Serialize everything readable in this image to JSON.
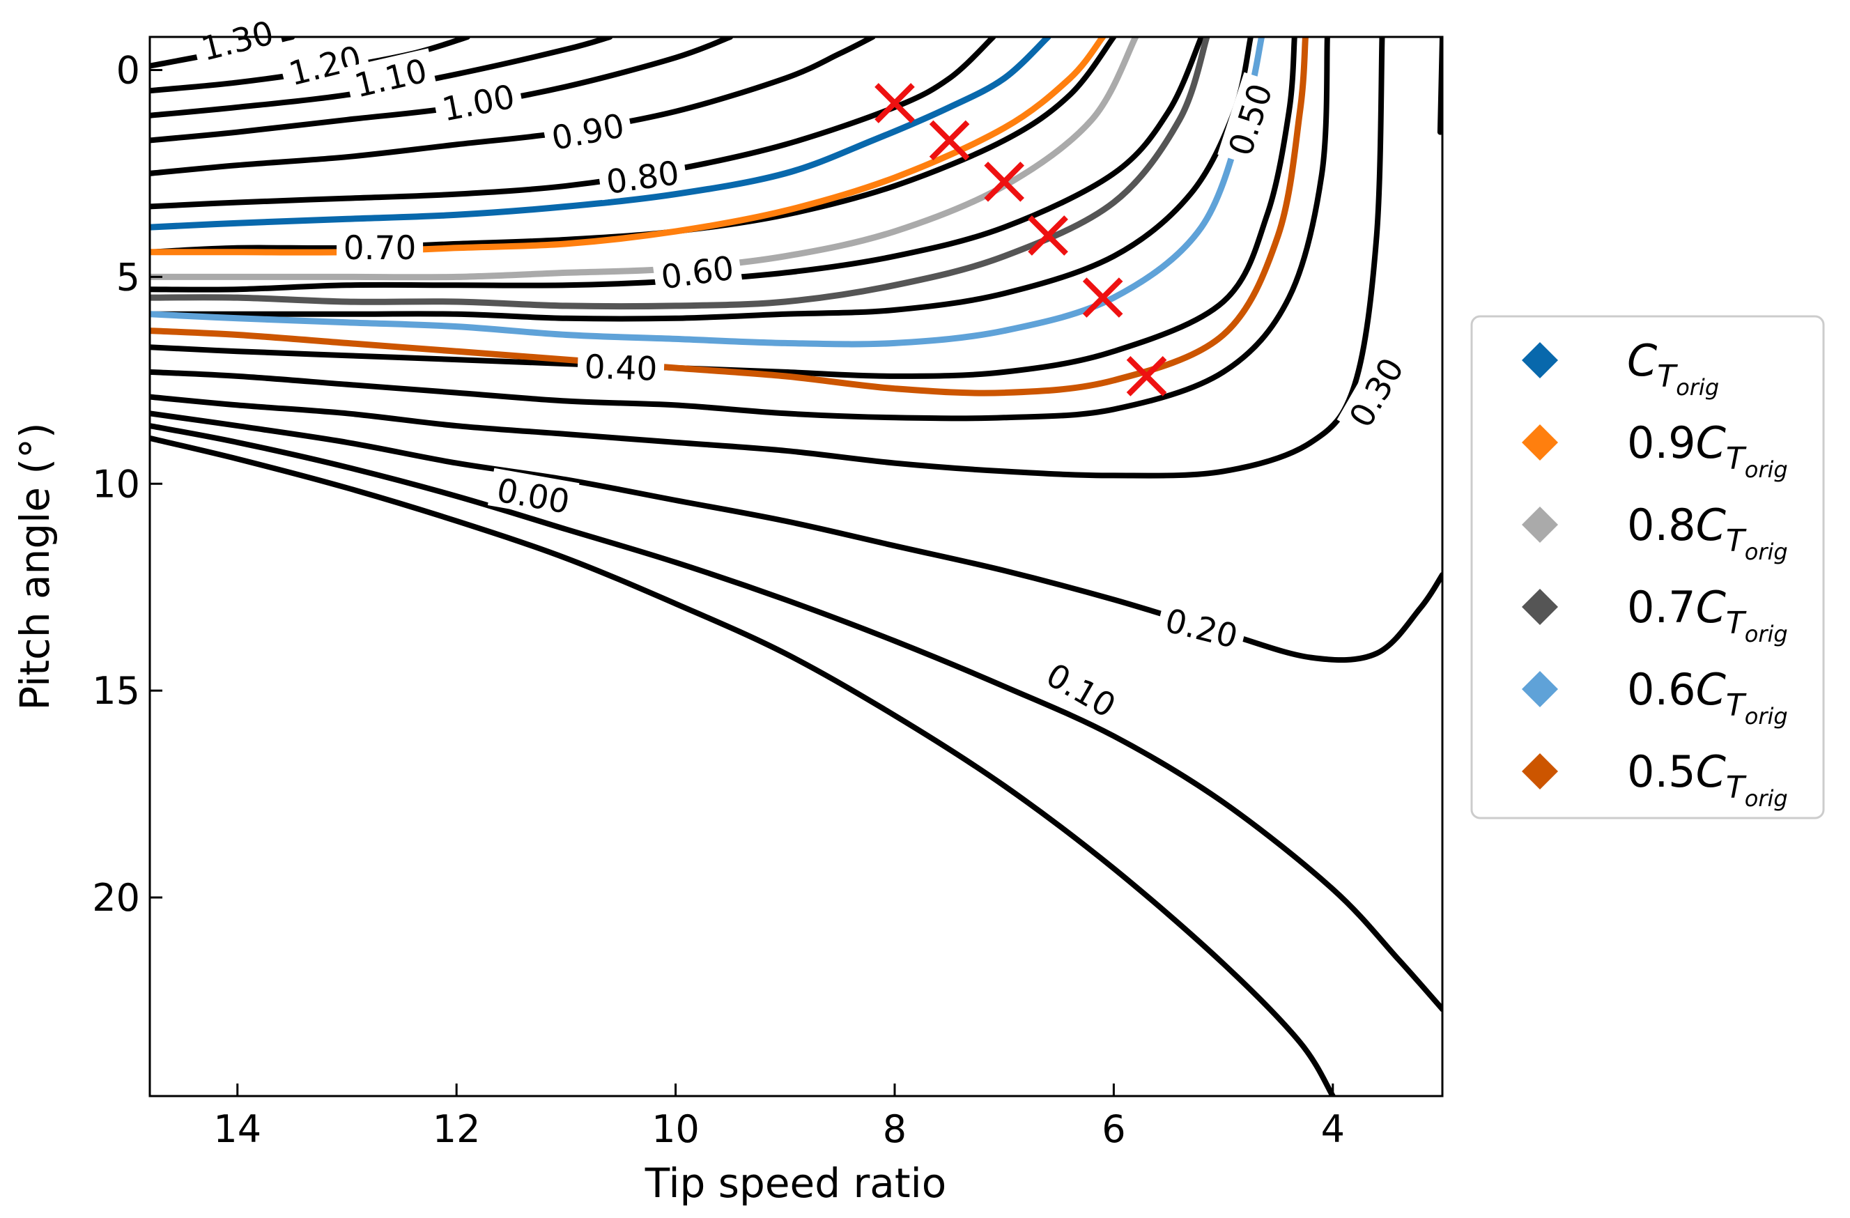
{
  "chart_data": {
    "type": "contour",
    "xlabel": "Tip speed ratio",
    "ylabel": "Pitch angle (°)",
    "xlim": [
      14.8,
      3.0
    ],
    "ylim": [
      24.8,
      -0.8
    ],
    "x_ticks": [
      {
        "value": 14,
        "label": "14"
      },
      {
        "value": 12,
        "label": "12"
      },
      {
        "value": 10,
        "label": "10"
      },
      {
        "value": 8,
        "label": "8"
      },
      {
        "value": 6,
        "label": "6"
      },
      {
        "value": 4,
        "label": "4"
      }
    ],
    "y_ticks": [
      {
        "value": 0,
        "label": "0"
      },
      {
        "value": 5,
        "label": "5"
      },
      {
        "value": 10,
        "label": "10"
      },
      {
        "value": 15,
        "label": "15"
      },
      {
        "value": 20,
        "label": "20"
      }
    ],
    "contour_labels": [
      {
        "text": "1.30",
        "x": 14.0,
        "y": -0.7,
        "angle": -14
      },
      {
        "text": "1.20",
        "x": 13.2,
        "y": -0.1,
        "angle": -14
      },
      {
        "text": "1.10",
        "x": 12.6,
        "y": 0.2,
        "angle": -13
      },
      {
        "text": "1.00",
        "x": 11.8,
        "y": 0.8,
        "angle": -11
      },
      {
        "text": "0.90",
        "x": 10.8,
        "y": 1.5,
        "angle": -11
      },
      {
        "text": "0.80",
        "x": 10.3,
        "y": 2.6,
        "angle": -8
      },
      {
        "text": "0.70",
        "x": 12.7,
        "y": 4.3,
        "angle": 0
      },
      {
        "text": "0.60",
        "x": 9.8,
        "y": 4.9,
        "angle": -8
      },
      {
        "text": "0.50",
        "x": 4.75,
        "y": 1.2,
        "angle": -72
      },
      {
        "text": "0.40",
        "x": 10.5,
        "y": 7.2,
        "angle": 2
      },
      {
        "text": "0.30",
        "x": 3.6,
        "y": 7.8,
        "angle": -60
      },
      {
        "text": "0.20",
        "x": 5.2,
        "y": 13.5,
        "angle": 14
      },
      {
        "text": "0.10",
        "x": 6.3,
        "y": 15.0,
        "angle": 30
      },
      {
        "text": "0.00",
        "x": 11.3,
        "y": 10.3,
        "angle": 10
      }
    ],
    "contours": [
      {
        "level": "1.30",
        "points": [
          [
            14.8,
            -0.1
          ],
          [
            14.0,
            -0.5
          ],
          [
            13.5,
            -0.8
          ]
        ]
      },
      {
        "level": "1.20",
        "points": [
          [
            14.8,
            0.5
          ],
          [
            14.0,
            0.3
          ],
          [
            13.2,
            0.0
          ],
          [
            12.4,
            -0.4
          ],
          [
            11.9,
            -0.8
          ]
        ]
      },
      {
        "level": "1.10",
        "points": [
          [
            14.8,
            1.1
          ],
          [
            14.0,
            0.9
          ],
          [
            13.0,
            0.6
          ],
          [
            12.0,
            0.1
          ],
          [
            11.0,
            -0.5
          ],
          [
            10.6,
            -0.8
          ]
        ]
      },
      {
        "level": "1.00",
        "points": [
          [
            14.8,
            1.7
          ],
          [
            14.0,
            1.5
          ],
          [
            13.0,
            1.2
          ],
          [
            12.0,
            0.9
          ],
          [
            11.0,
            0.4
          ],
          [
            10.0,
            -0.3
          ],
          [
            9.5,
            -0.8
          ]
        ]
      },
      {
        "level": "0.90",
        "points": [
          [
            14.8,
            2.5
          ],
          [
            14.0,
            2.3
          ],
          [
            13.0,
            2.1
          ],
          [
            12.0,
            1.8
          ],
          [
            11.0,
            1.5
          ],
          [
            10.0,
            1.0
          ],
          [
            9.0,
            0.2
          ],
          [
            8.5,
            -0.4
          ],
          [
            8.2,
            -0.8
          ]
        ]
      },
      {
        "level": "0.80",
        "points": [
          [
            14.8,
            3.3
          ],
          [
            14.0,
            3.2
          ],
          [
            13.0,
            3.1
          ],
          [
            12.0,
            3.0
          ],
          [
            11.0,
            2.8
          ],
          [
            10.0,
            2.4
          ],
          [
            9.0,
            1.8
          ],
          [
            8.0,
            0.9
          ],
          [
            7.5,
            0.2
          ],
          [
            7.1,
            -0.8
          ]
        ]
      },
      {
        "level": "0.70",
        "points": [
          [
            14.8,
            4.4
          ],
          [
            14.0,
            4.3
          ],
          [
            13.0,
            4.3
          ],
          [
            12.0,
            4.2
          ],
          [
            11.0,
            4.1
          ],
          [
            10.0,
            3.9
          ],
          [
            9.0,
            3.5
          ],
          [
            8.0,
            2.8
          ],
          [
            7.0,
            1.7
          ],
          [
            6.4,
            0.6
          ],
          [
            6.0,
            -0.8
          ]
        ]
      },
      {
        "level": "0.60",
        "points": [
          [
            14.8,
            5.3
          ],
          [
            14.0,
            5.3
          ],
          [
            13.0,
            5.2
          ],
          [
            12.0,
            5.2
          ],
          [
            11.0,
            5.2
          ],
          [
            10.0,
            5.1
          ],
          [
            9.0,
            4.9
          ],
          [
            8.0,
            4.5
          ],
          [
            7.0,
            3.8
          ],
          [
            6.0,
            2.5
          ],
          [
            5.5,
            1.0
          ],
          [
            5.2,
            -0.8
          ]
        ]
      },
      {
        "level": "0.50",
        "points": [
          [
            14.8,
            5.9
          ],
          [
            14.0,
            5.9
          ],
          [
            13.0,
            5.9
          ],
          [
            12.0,
            5.9
          ],
          [
            11.0,
            6.0
          ],
          [
            10.0,
            6.0
          ],
          [
            9.0,
            5.9
          ],
          [
            8.0,
            5.8
          ],
          [
            7.0,
            5.4
          ],
          [
            6.0,
            4.5
          ],
          [
            5.3,
            3.0
          ],
          [
            4.9,
            1.0
          ],
          [
            4.75,
            -0.8
          ]
        ]
      },
      {
        "level": "0.40",
        "points": [
          [
            14.8,
            6.7
          ],
          [
            14.0,
            6.8
          ],
          [
            13.0,
            6.9
          ],
          [
            12.0,
            7.0
          ],
          [
            11.0,
            7.1
          ],
          [
            10.0,
            7.2
          ],
          [
            9.0,
            7.3
          ],
          [
            8.0,
            7.4
          ],
          [
            7.0,
            7.3
          ],
          [
            6.0,
            6.8
          ],
          [
            5.0,
            5.6
          ],
          [
            4.6,
            3.5
          ],
          [
            4.4,
            1.0
          ],
          [
            4.35,
            -0.8
          ]
        ]
      },
      {
        "level": "0.35",
        "points": [
          [
            14.8,
            7.3
          ],
          [
            14.0,
            7.4
          ],
          [
            13.0,
            7.6
          ],
          [
            12.0,
            7.8
          ],
          [
            11.0,
            8.0
          ],
          [
            10.0,
            8.1
          ],
          [
            9.0,
            8.3
          ],
          [
            8.0,
            8.4
          ],
          [
            7.0,
            8.4
          ],
          [
            6.0,
            8.2
          ],
          [
            5.0,
            7.3
          ],
          [
            4.4,
            5.5
          ],
          [
            4.1,
            2.5
          ],
          [
            4.05,
            -0.8
          ]
        ]
      },
      {
        "level": "0.30",
        "points": [
          [
            14.8,
            7.9
          ],
          [
            14.0,
            8.1
          ],
          [
            13.0,
            8.3
          ],
          [
            12.0,
            8.6
          ],
          [
            11.0,
            8.8
          ],
          [
            10.0,
            9.0
          ],
          [
            9.0,
            9.2
          ],
          [
            8.0,
            9.5
          ],
          [
            7.0,
            9.7
          ],
          [
            6.0,
            9.8
          ],
          [
            5.0,
            9.7
          ],
          [
            4.2,
            9.0
          ],
          [
            3.8,
            7.6
          ],
          [
            3.6,
            4.0
          ],
          [
            3.55,
            -0.8
          ]
        ]
      },
      {
        "level": "0.20",
        "points": [
          [
            14.8,
            8.3
          ],
          [
            14.0,
            8.6
          ],
          [
            13.0,
            9.0
          ],
          [
            12.0,
            9.5
          ],
          [
            11.0,
            9.9
          ],
          [
            10.0,
            10.4
          ],
          [
            9.0,
            10.9
          ],
          [
            8.0,
            11.5
          ],
          [
            7.0,
            12.1
          ],
          [
            6.0,
            12.8
          ],
          [
            5.0,
            13.6
          ],
          [
            4.2,
            14.2
          ],
          [
            3.6,
            14.1
          ],
          [
            3.2,
            13.0
          ],
          [
            3.0,
            12.2
          ]
        ]
      },
      {
        "level": "0.10",
        "points": [
          [
            14.8,
            8.6
          ],
          [
            14.0,
            9.0
          ],
          [
            13.0,
            9.6
          ],
          [
            12.0,
            10.3
          ],
          [
            11.0,
            11.1
          ],
          [
            10.0,
            11.9
          ],
          [
            9.0,
            12.8
          ],
          [
            8.0,
            13.8
          ],
          [
            7.0,
            14.9
          ],
          [
            6.0,
            16.1
          ],
          [
            5.0,
            17.7
          ],
          [
            4.0,
            19.8
          ],
          [
            3.4,
            21.5
          ],
          [
            3.0,
            22.7
          ]
        ]
      },
      {
        "level": "0.00",
        "points": [
          [
            14.8,
            8.9
          ],
          [
            14.0,
            9.4
          ],
          [
            13.0,
            10.1
          ],
          [
            12.0,
            10.9
          ],
          [
            11.0,
            11.8
          ],
          [
            10.0,
            12.9
          ],
          [
            9.0,
            14.1
          ],
          [
            8.0,
            15.6
          ],
          [
            7.0,
            17.3
          ],
          [
            6.0,
            19.3
          ],
          [
            5.0,
            21.6
          ],
          [
            4.3,
            23.5
          ],
          [
            4.0,
            24.8
          ]
        ]
      },
      {
        "level": "0.35b",
        "points": [
          [
            3.0,
            -0.8
          ],
          [
            3.02,
            1.5
          ]
        ]
      }
    ],
    "series": [
      {
        "name": "C",
        "prefix": "",
        "color": "#0868ac",
        "points": [
          [
            14.8,
            3.8
          ],
          [
            14.0,
            3.7
          ],
          [
            13.0,
            3.6
          ],
          [
            12.0,
            3.5
          ],
          [
            11.0,
            3.3
          ],
          [
            10.0,
            3.0
          ],
          [
            9.0,
            2.5
          ],
          [
            8.2,
            1.7
          ],
          [
            7.5,
            0.9
          ],
          [
            7.0,
            0.2
          ],
          [
            6.6,
            -0.8
          ]
        ]
      },
      {
        "name": "C",
        "prefix": "0.9",
        "color": "#ff7f0e",
        "points": [
          [
            14.8,
            4.4
          ],
          [
            14.0,
            4.4
          ],
          [
            13.0,
            4.4
          ],
          [
            12.0,
            4.3
          ],
          [
            11.0,
            4.2
          ],
          [
            10.0,
            3.9
          ],
          [
            9.0,
            3.4
          ],
          [
            8.0,
            2.6
          ],
          [
            7.0,
            1.4
          ],
          [
            6.4,
            0.2
          ],
          [
            6.1,
            -0.8
          ]
        ]
      },
      {
        "name": "C",
        "prefix": "0.8",
        "color": "#aaaaaa",
        "points": [
          [
            14.8,
            5.0
          ],
          [
            14.0,
            5.0
          ],
          [
            13.0,
            5.0
          ],
          [
            12.0,
            5.0
          ],
          [
            11.0,
            4.9
          ],
          [
            10.0,
            4.8
          ],
          [
            9.0,
            4.5
          ],
          [
            8.0,
            3.9
          ],
          [
            7.0,
            2.8
          ],
          [
            6.2,
            1.2
          ],
          [
            5.8,
            -0.8
          ]
        ]
      },
      {
        "name": "C",
        "prefix": "0.7",
        "color": "#555555",
        "points": [
          [
            14.8,
            5.5
          ],
          [
            14.0,
            5.5
          ],
          [
            13.0,
            5.6
          ],
          [
            12.0,
            5.6
          ],
          [
            11.0,
            5.7
          ],
          [
            10.0,
            5.7
          ],
          [
            9.0,
            5.6
          ],
          [
            8.0,
            5.2
          ],
          [
            7.0,
            4.5
          ],
          [
            6.0,
            3.2
          ],
          [
            5.4,
            1.2
          ],
          [
            5.15,
            -0.8
          ]
        ]
      },
      {
        "name": "C",
        "prefix": "0.6",
        "color": "#5fa2d8",
        "points": [
          [
            14.8,
            5.9
          ],
          [
            14.0,
            6.0
          ],
          [
            13.0,
            6.1
          ],
          [
            12.0,
            6.2
          ],
          [
            11.0,
            6.4
          ],
          [
            10.0,
            6.5
          ],
          [
            9.0,
            6.6
          ],
          [
            8.0,
            6.6
          ],
          [
            7.0,
            6.3
          ],
          [
            6.0,
            5.5
          ],
          [
            5.2,
            3.8
          ],
          [
            4.8,
            1.0
          ],
          [
            4.65,
            -0.8
          ]
        ]
      },
      {
        "name": "C",
        "prefix": "0.5",
        "color": "#cc5500",
        "points": [
          [
            14.8,
            6.3
          ],
          [
            14.0,
            6.4
          ],
          [
            13.0,
            6.6
          ],
          [
            12.0,
            6.8
          ],
          [
            11.0,
            7.0
          ],
          [
            10.0,
            7.2
          ],
          [
            9.0,
            7.4
          ],
          [
            8.0,
            7.7
          ],
          [
            7.0,
            7.8
          ],
          [
            6.0,
            7.5
          ],
          [
            5.0,
            6.4
          ],
          [
            4.5,
            4.0
          ],
          [
            4.3,
            1.0
          ],
          [
            4.25,
            -0.8
          ]
        ]
      }
    ],
    "markers": [
      [
        8.0,
        0.8
      ],
      [
        7.5,
        1.7
      ],
      [
        7.0,
        2.7
      ],
      [
        6.6,
        4.0
      ],
      [
        6.1,
        5.5
      ],
      [
        5.7,
        7.4
      ]
    ],
    "legend": {
      "position": "right",
      "subscript": "T",
      "subsubscript": "orig"
    }
  }
}
